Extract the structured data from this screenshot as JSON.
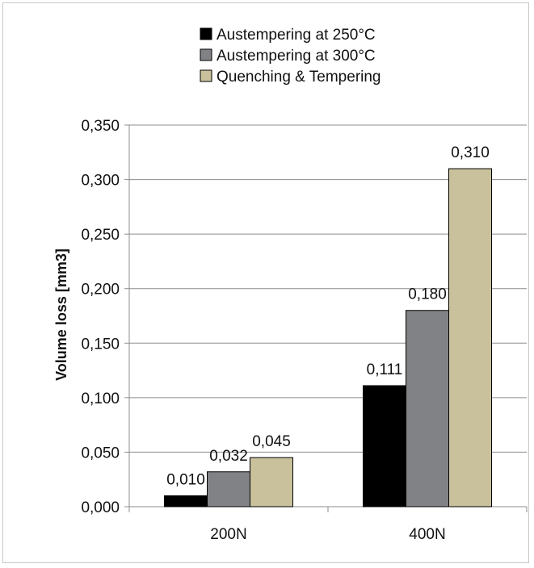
{
  "chart_data": {
    "type": "bar",
    "categories": [
      "200N",
      "400N"
    ],
    "series": [
      {
        "name": "Austempering at 250°C",
        "values": [
          0.01,
          0.111
        ],
        "labels": [
          "0,010",
          "0,111"
        ],
        "color": "#000000"
      },
      {
        "name": "Austempering at 300°C",
        "values": [
          0.032,
          0.18
        ],
        "labels": [
          "0,032",
          "0,180"
        ],
        "color": "#808285"
      },
      {
        "name": "Quenching & Tempering",
        "values": [
          0.045,
          0.31
        ],
        "labels": [
          "0,045",
          "0,310"
        ],
        "color": "#c9c19c"
      }
    ],
    "ylabel": "Volume loss [mm3]",
    "xlabel": "",
    "ylim": [
      0,
      0.35
    ],
    "yticks": [
      0,
      0.05,
      0.1,
      0.15,
      0.2,
      0.25,
      0.3,
      0.35
    ],
    "ytick_labels": [
      "0,000",
      "0,050",
      "0,100",
      "0,150",
      "0,200",
      "0,250",
      "0,300",
      "0,350"
    ],
    "grid": true,
    "legend_position": "top"
  }
}
